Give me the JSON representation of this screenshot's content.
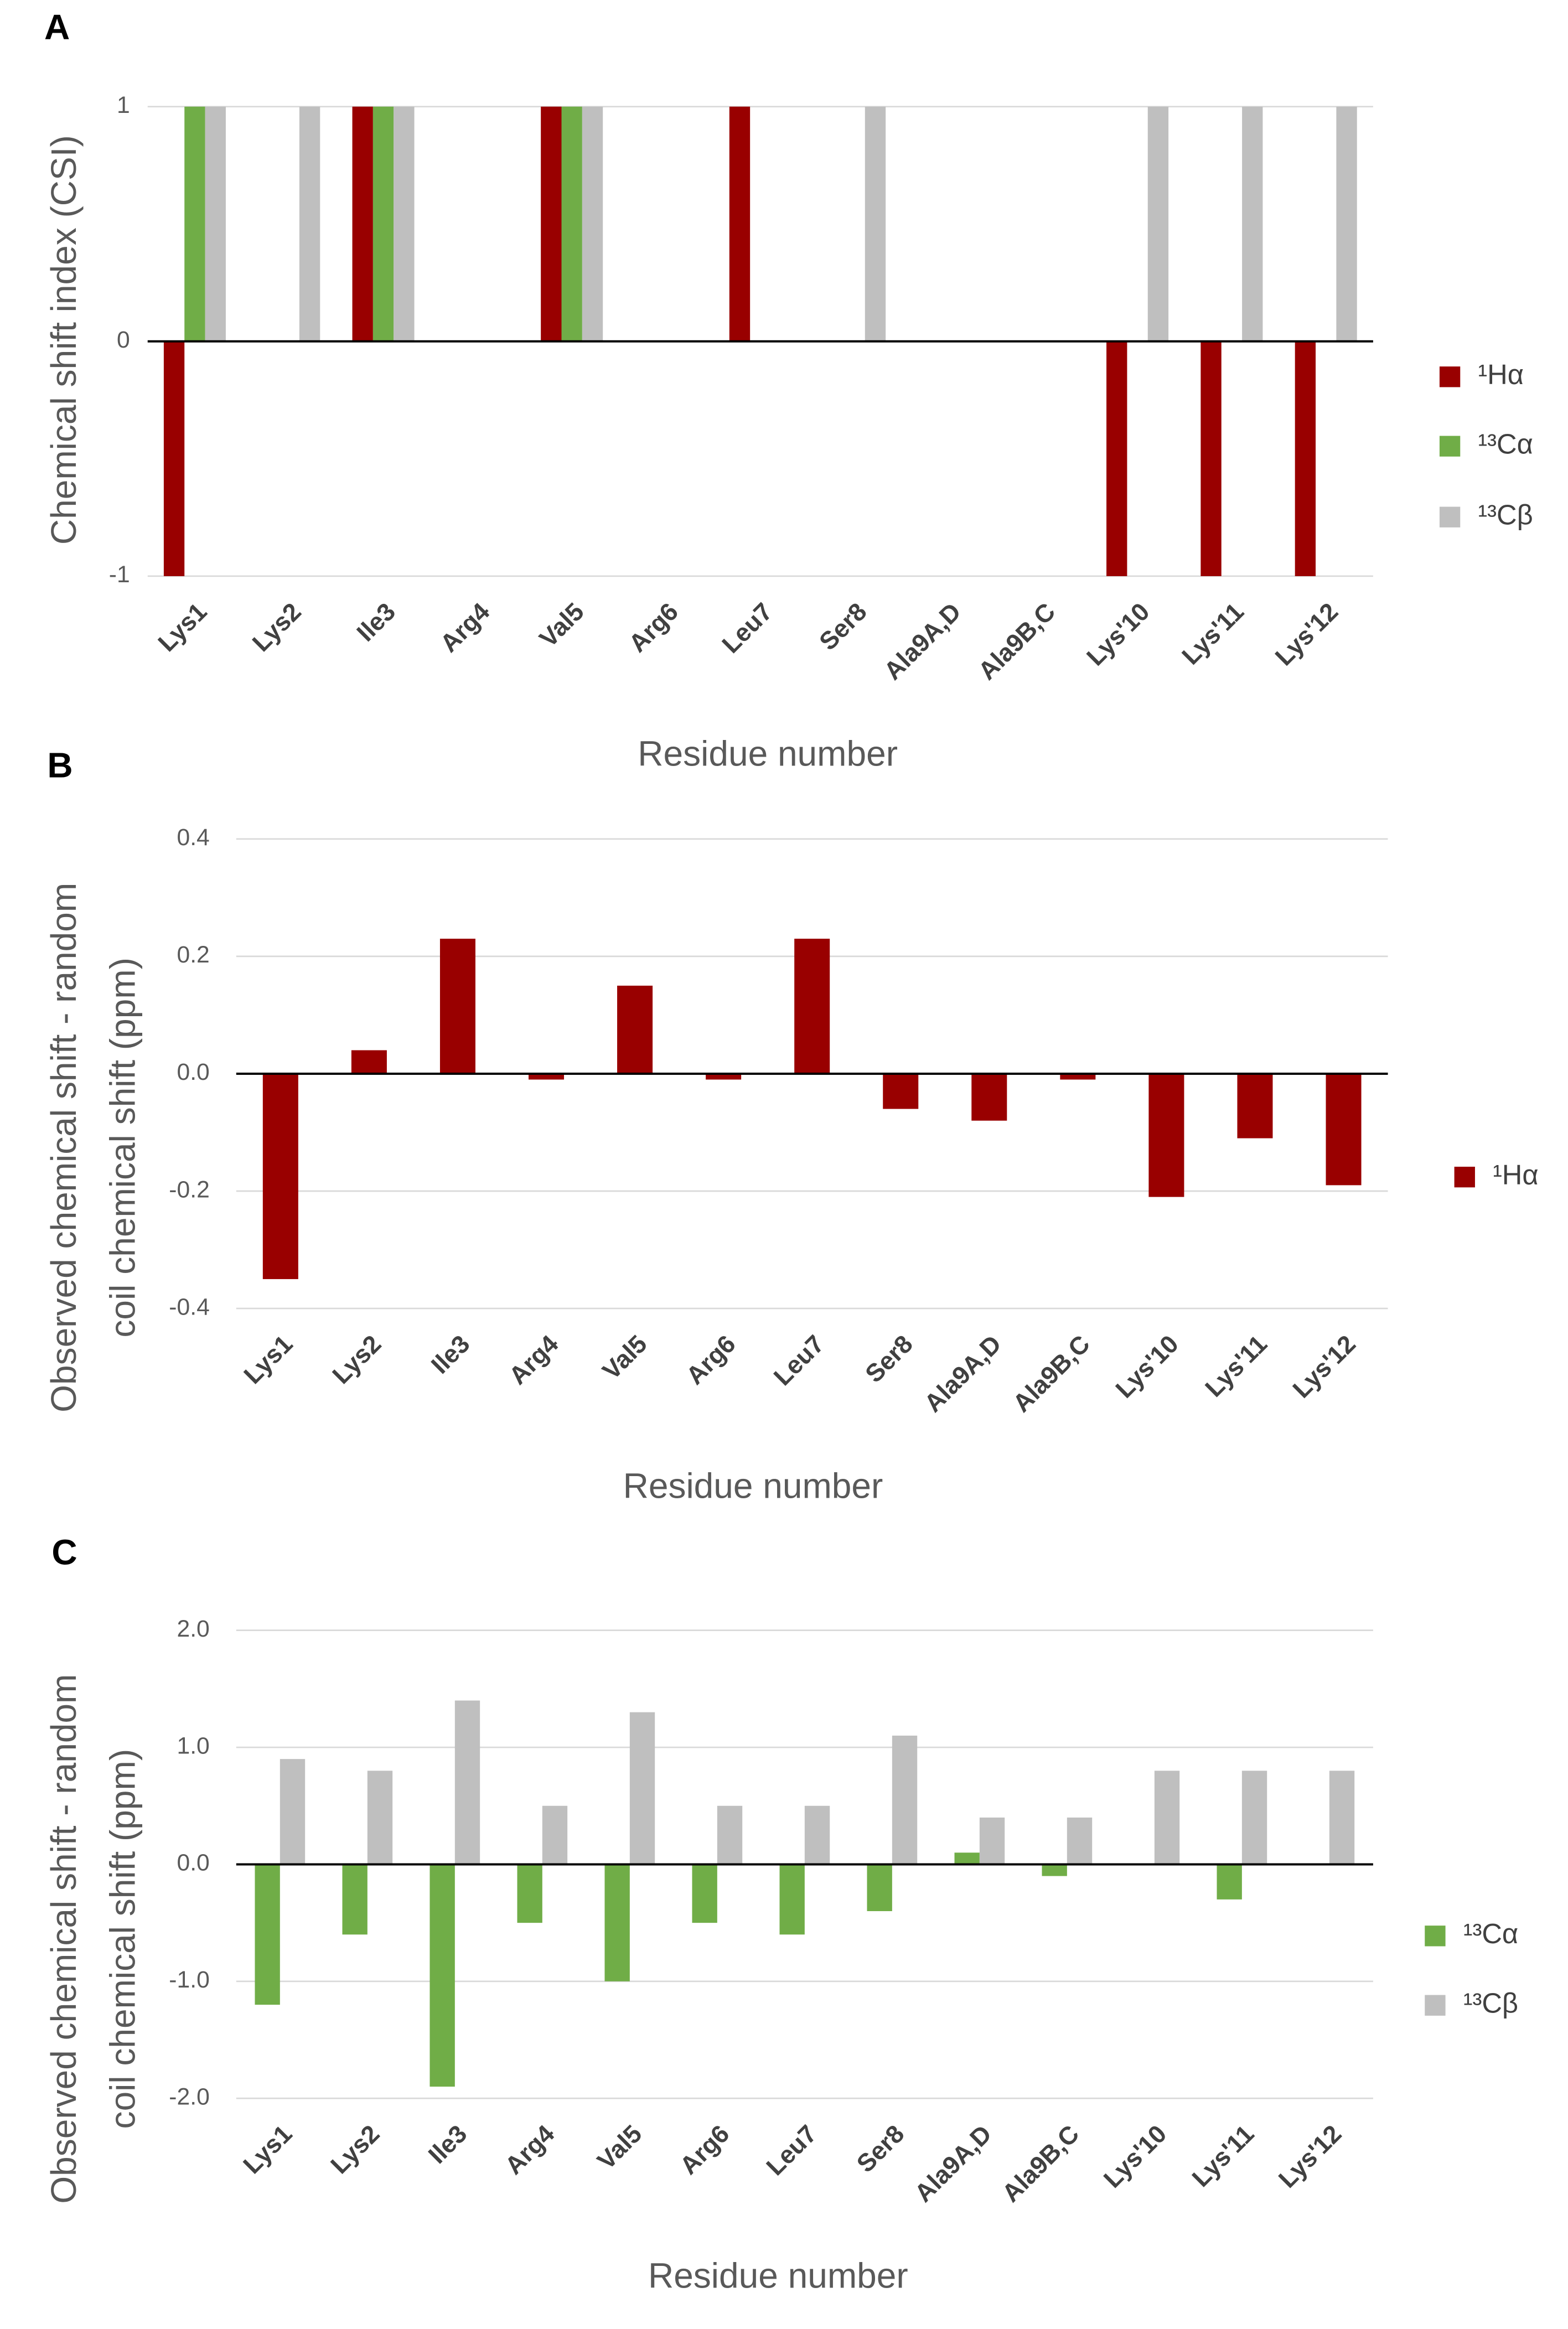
{
  "chart_data": [
    {
      "type": "bar",
      "panel_label": "A",
      "ylabel": [
        "Chemical shift index (CSI)"
      ],
      "xlabel": "Residue number",
      "categories": [
        "Lys1",
        "Lys2",
        "Ile3",
        "Arg4",
        "Val5",
        "Arg6",
        "Leu7",
        "Ser8",
        "Ala9A,D",
        "Ala9B,C",
        "Lys'10",
        "Lys'11",
        "Lys'12"
      ],
      "series": [
        {
          "name": "¹Hα",
          "color": "#990000",
          "values": [
            -1,
            0,
            1,
            0,
            1,
            0,
            1,
            0,
            0,
            0,
            -1,
            -1,
            -1
          ]
        },
        {
          "name": "¹³Cα",
          "color": "#70ad47",
          "values": [
            1,
            0,
            1,
            0,
            1,
            0,
            0,
            0,
            0,
            0,
            0,
            0,
            0
          ]
        },
        {
          "name": "¹³Cβ",
          "color": "#bfbfbf",
          "values": [
            1,
            1,
            1,
            0,
            1,
            0,
            0,
            1,
            0,
            0,
            1,
            1,
            1
          ]
        }
      ],
      "ylim": [
        -1,
        1
      ],
      "yticks": [
        -1,
        0,
        1
      ],
      "grid": true,
      "legend": "right"
    },
    {
      "type": "bar",
      "panel_label": "B",
      "ylabel": [
        "Observed chemical shift - random",
        "coil chemical shift (ppm)"
      ],
      "xlabel": "Residue number",
      "categories": [
        "Lys1",
        "Lys2",
        "Ile3",
        "Arg4",
        "Val5",
        "Arg6",
        "Leu7",
        "Ser8",
        "Ala9A,D",
        "Ala9B,C",
        "Lys'10",
        "Lys'11",
        "Lys'12"
      ],
      "series": [
        {
          "name": "¹Hα",
          "color": "#990000",
          "values": [
            -0.35,
            0.04,
            0.23,
            -0.01,
            0.15,
            -0.01,
            0.23,
            -0.06,
            -0.08,
            -0.01,
            -0.21,
            -0.11,
            -0.19
          ]
        }
      ],
      "ylim": [
        -0.4,
        0.4
      ],
      "yticks": [
        -0.4,
        -0.2,
        {
          "value": 0,
          "label": "0.0"
        },
        0.2,
        0.4
      ],
      "grid": true,
      "legend": "right"
    },
    {
      "type": "bar",
      "panel_label": "C",
      "ylabel": [
        "Observed chemical shift - random",
        "coil chemical shift (ppm)"
      ],
      "xlabel": "Residue number",
      "categories": [
        "Lys1",
        "Lys2",
        "Ile3",
        "Arg4",
        "Val5",
        "Arg6",
        "Leu7",
        "Ser8",
        "Ala9A,D",
        "Ala9B,C",
        "Lys'10",
        "Lys'11",
        "Lys'12"
      ],
      "series": [
        {
          "name": "¹³Cα",
          "color": "#70ad47",
          "values": [
            -1.2,
            -0.6,
            -1.9,
            -0.5,
            -1.0,
            -0.5,
            -0.6,
            -0.4,
            0.1,
            -0.1,
            0,
            -0.3,
            0
          ]
        },
        {
          "name": "¹³Cβ",
          "color": "#bfbfbf",
          "values": [
            0.9,
            0.8,
            1.4,
            0.5,
            1.3,
            0.5,
            0.5,
            1.1,
            0.4,
            0.4,
            0.8,
            0.8,
            0.8
          ]
        }
      ],
      "ylim": [
        -2,
        2
      ],
      "yticks": [
        {
          "value": -2,
          "label": "-2.0"
        },
        {
          "value": -1,
          "label": "-1.0"
        },
        {
          "value": 0,
          "label": "0.0"
        },
        {
          "value": 1,
          "label": "1.0"
        },
        {
          "value": 2,
          "label": "2.0"
        }
      ],
      "grid": true,
      "legend": "right"
    }
  ]
}
